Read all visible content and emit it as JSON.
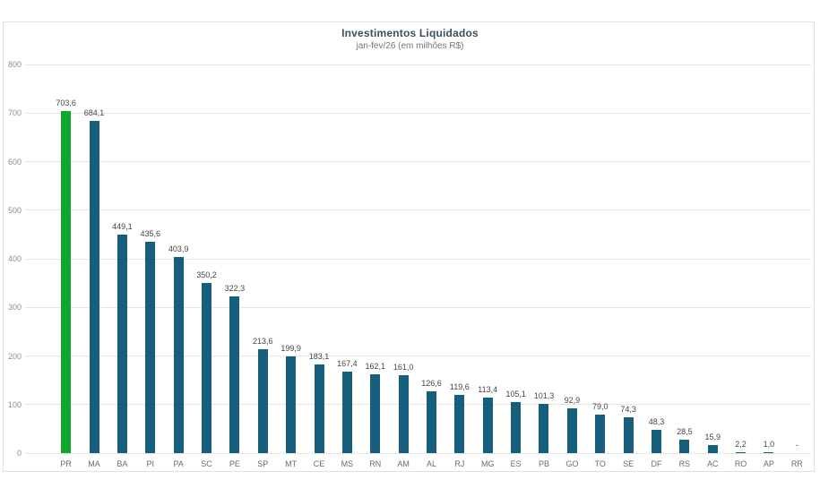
{
  "chart_data": {
    "type": "bar",
    "title": "Investimentos Liquidados",
    "subtitle": "jan-fev/26 (em milhões R$)",
    "categories": [
      "PR",
      "MA",
      "BA",
      "PI",
      "PA",
      "SC",
      "PE",
      "SP",
      "MT",
      "CE",
      "MS",
      "RN",
      "AM",
      "AL",
      "RJ",
      "MG",
      "ES",
      "PB",
      "GO",
      "TO",
      "SE",
      "DF",
      "RS",
      "AC",
      "RO",
      "AP",
      "RR"
    ],
    "values": [
      703.6,
      684.1,
      449.1,
      435.6,
      403.9,
      350.2,
      322.3,
      213.6,
      199.9,
      183.1,
      167.4,
      162.1,
      161.0,
      126.6,
      119.6,
      113.4,
      105.1,
      101.3,
      92.9,
      79.0,
      74.3,
      48.3,
      28.5,
      15.9,
      2.2,
      1.0,
      null
    ],
    "value_labels": [
      "703,6",
      "684,1",
      "449,1",
      "435,6",
      "403,9",
      "350,2",
      "322,3",
      "213,6",
      "199,9",
      "183,1",
      "167,4",
      "162,1",
      "161,0",
      "126,6",
      "119,6",
      "113,4",
      "105,1",
      "101,3",
      "92,9",
      "79,0",
      "74,3",
      "48,3",
      "28,5",
      "15,9",
      "2,2",
      "1,0",
      "-"
    ],
    "xlabel": "",
    "ylabel": "",
    "ylim": [
      0,
      800
    ],
    "y_ticks": [
      0,
      100,
      200,
      300,
      400,
      500,
      600,
      700,
      800
    ],
    "grid": true,
    "legend": "none",
    "highlight_index": 0,
    "colors": {
      "bar": "#155f7d",
      "highlight_bar": "#12a52b",
      "grid_line": "#e4e4e4",
      "y_tick_label": "#8f8f8f",
      "value_label": "#454545",
      "x_label": "#5f6e78",
      "title": "#3a4f63",
      "subtitle": "#767676",
      "card_border": "#e1e1e1",
      "background": "#ffffff"
    }
  }
}
